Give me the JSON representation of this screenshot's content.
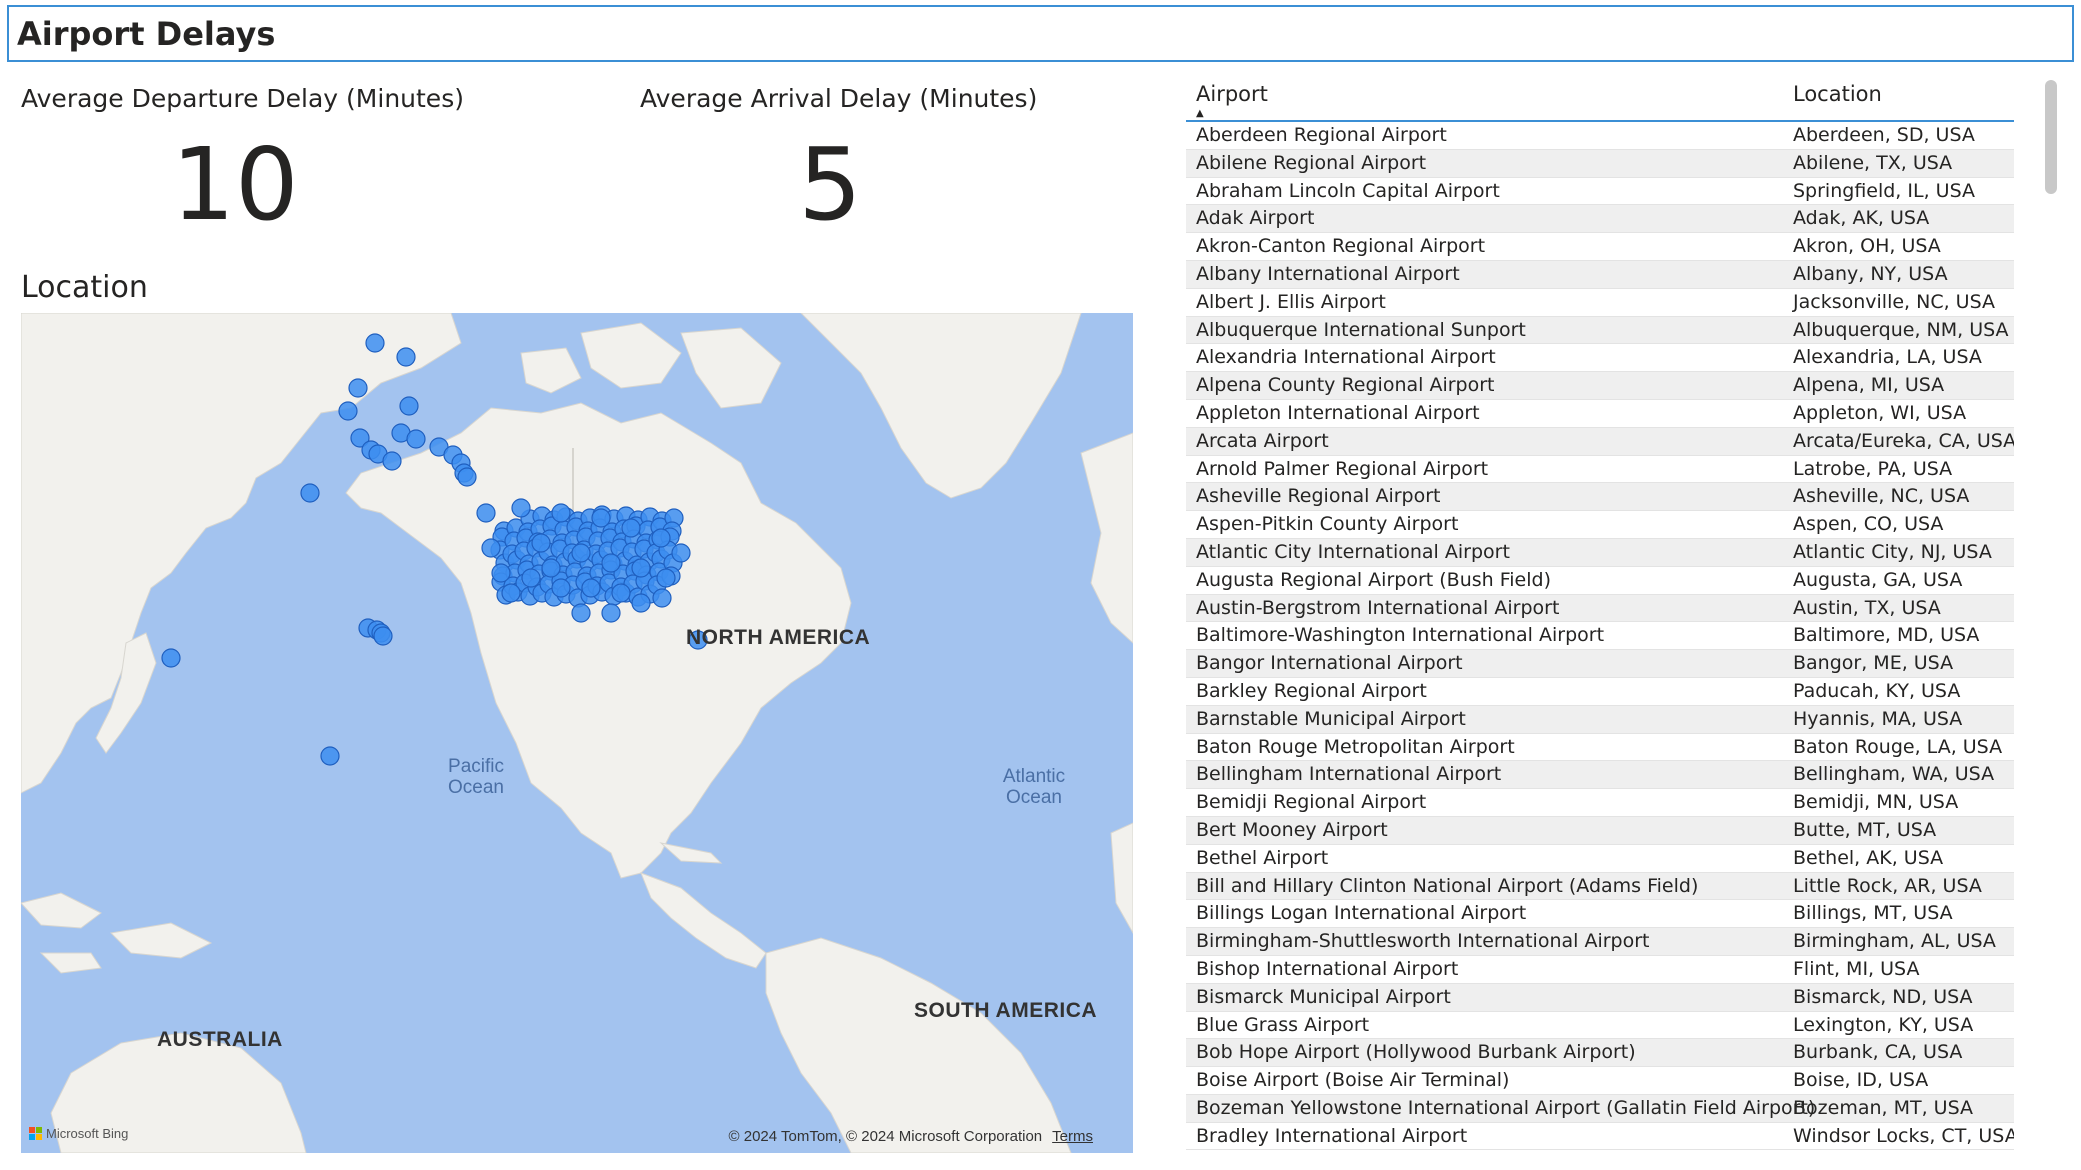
{
  "title": "Airport Delays",
  "kpis": {
    "departure": {
      "label": "Average Departure Delay (Minutes)",
      "value": "10"
    },
    "arrival": {
      "label": "Average Arrival Delay (Minutes)",
      "value": "5"
    }
  },
  "map": {
    "title": "Location",
    "labels": {
      "north_america": "NORTH AMERICA",
      "south_america": "SOUTH AMERICA",
      "australia": "AUSTRALIA",
      "pacific_line1": "Pacific",
      "pacific_line2": "Ocean",
      "atlantic_line1": "Atlantic",
      "atlantic_line2": "Ocean"
    },
    "copyright": "© 2024 TomTom, © 2024 Microsoft Corporation",
    "terms": "Terms",
    "logo": "Microsoft Bing",
    "colors": {
      "water": "#a3c3ef",
      "land": "#f2f1ed",
      "marker": "#3d8ef0",
      "marker_stroke": "#1f5fbf"
    }
  },
  "table": {
    "columns": [
      "Airport",
      "Location"
    ],
    "sorted_by": "Airport",
    "rows": [
      [
        "Aberdeen Regional Airport",
        "Aberdeen, SD, USA"
      ],
      [
        "Abilene Regional Airport",
        "Abilene, TX, USA"
      ],
      [
        "Abraham Lincoln Capital Airport",
        "Springfield, IL, USA"
      ],
      [
        "Adak Airport",
        "Adak, AK, USA"
      ],
      [
        "Akron-Canton Regional Airport",
        "Akron, OH, USA"
      ],
      [
        "Albany International Airport",
        "Albany, NY, USA"
      ],
      [
        "Albert J. Ellis Airport",
        "Jacksonville, NC, USA"
      ],
      [
        "Albuquerque International Sunport",
        "Albuquerque, NM, USA"
      ],
      [
        "Alexandria International Airport",
        "Alexandria, LA, USA"
      ],
      [
        "Alpena County Regional Airport",
        "Alpena, MI, USA"
      ],
      [
        "Appleton International Airport",
        "Appleton, WI, USA"
      ],
      [
        "Arcata Airport",
        "Arcata/Eureka, CA, USA"
      ],
      [
        "Arnold Palmer Regional Airport",
        "Latrobe, PA, USA"
      ],
      [
        "Asheville Regional Airport",
        "Asheville, NC, USA"
      ],
      [
        "Aspen-Pitkin County Airport",
        "Aspen, CO, USA"
      ],
      [
        "Atlantic City International Airport",
        "Atlantic City, NJ, USA"
      ],
      [
        "Augusta Regional Airport (Bush Field)",
        "Augusta, GA, USA"
      ],
      [
        "Austin-Bergstrom International Airport",
        "Austin, TX, USA"
      ],
      [
        "Baltimore-Washington International Airport",
        "Baltimore, MD, USA"
      ],
      [
        "Bangor International Airport",
        "Bangor, ME, USA"
      ],
      [
        "Barkley Regional Airport",
        "Paducah, KY, USA"
      ],
      [
        "Barnstable Municipal Airport",
        "Hyannis, MA, USA"
      ],
      [
        "Baton Rouge Metropolitan Airport",
        "Baton Rouge, LA, USA"
      ],
      [
        "Bellingham International Airport",
        "Bellingham, WA, USA"
      ],
      [
        "Bemidji Regional Airport",
        "Bemidji, MN, USA"
      ],
      [
        "Bert Mooney Airport",
        "Butte, MT, USA"
      ],
      [
        "Bethel Airport",
        "Bethel, AK, USA"
      ],
      [
        "Bill and Hillary Clinton National Airport (Adams Field)",
        "Little Rock, AR, USA"
      ],
      [
        "Billings Logan International Airport",
        "Billings, MT, USA"
      ],
      [
        "Birmingham-Shuttlesworth International Airport",
        "Birmingham, AL, USA"
      ],
      [
        "Bishop International Airport",
        "Flint, MI, USA"
      ],
      [
        "Bismarck Municipal Airport",
        "Bismarck, ND, USA"
      ],
      [
        "Blue Grass Airport",
        "Lexington, KY, USA"
      ],
      [
        "Bob Hope Airport (Hollywood Burbank Airport)",
        "Burbank, CA, USA"
      ],
      [
        "Boise Airport (Boise Air Terminal)",
        "Boise, ID, USA"
      ],
      [
        "Bozeman Yellowstone International Airport (Gallatin Field Airport)",
        "Bozeman, MT, USA"
      ],
      [
        "Bradley International Airport",
        "Windsor Locks, CT, USA"
      ]
    ]
  }
}
